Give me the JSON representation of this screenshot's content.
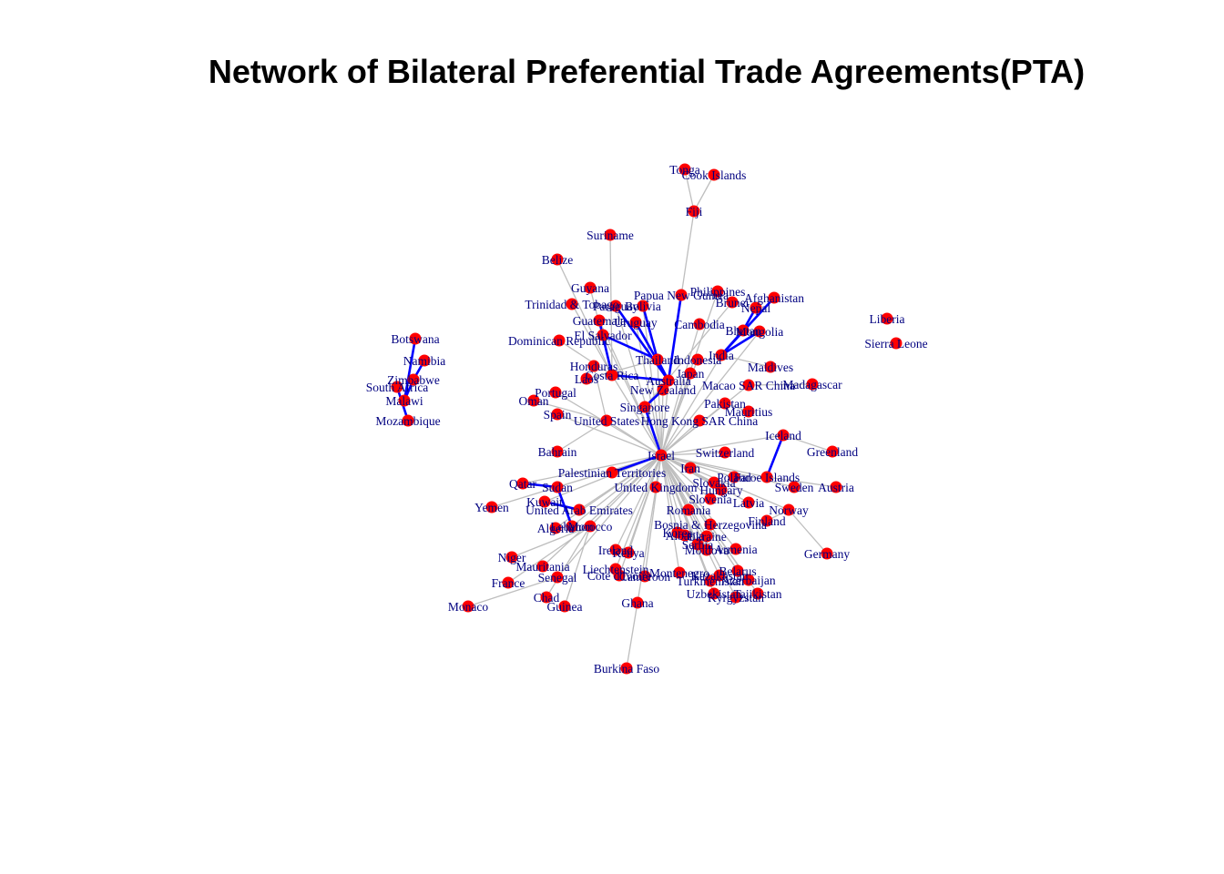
{
  "title": "Network of Bilateral Preferential Trade Agreements(PTA)",
  "colors": {
    "node": "#ff0000",
    "label": "#000080",
    "edge_grey": "#bebebe",
    "edge_blue": "#0000ff"
  },
  "nodes": [
    {
      "id": "Tonga",
      "label": "Tonga"
    },
    {
      "id": "Cook Islands",
      "label": "Cook Islands"
    },
    {
      "id": "Fiji",
      "label": "Fiji"
    },
    {
      "id": "Suriname",
      "label": "Suriname"
    },
    {
      "id": "Belize",
      "label": "Belize"
    },
    {
      "id": "Guyana",
      "label": "Guyana"
    },
    {
      "id": "Trinidad & Tobago",
      "label": "Trinidad & Tobago"
    },
    {
      "id": "Papua New Guinea",
      "label": "Papua New Guinea"
    },
    {
      "id": "Philippines",
      "label": "Philippines"
    },
    {
      "id": "Brunei",
      "label": "Brunei"
    },
    {
      "id": "Afghanistan",
      "label": "Afghanistan"
    },
    {
      "id": "Nepal",
      "label": "Nepal"
    },
    {
      "id": "Bhutan",
      "label": "Bhutan"
    },
    {
      "id": "Mongolia",
      "label": "Mongolia"
    },
    {
      "id": "Liberia",
      "label": "Liberia"
    },
    {
      "id": "Sierra Leone",
      "label": "Sierra Leone"
    },
    {
      "id": "Botswana",
      "label": "Botswana"
    },
    {
      "id": "Namibia",
      "label": "Namibia"
    },
    {
      "id": "Zimbabwe",
      "label": "Zimbabwe"
    },
    {
      "id": "South Africa",
      "label": "South Africa"
    },
    {
      "id": "Malawi",
      "label": "Malawi"
    },
    {
      "id": "Mozambique",
      "label": "Mozambique"
    },
    {
      "id": "Paraguay",
      "label": "Paraguay"
    },
    {
      "id": "Bolivia",
      "label": "Bolivia"
    },
    {
      "id": "Guatemala",
      "label": "Guatemala"
    },
    {
      "id": "Uruguay",
      "label": "Uruguay"
    },
    {
      "id": "El Salvador",
      "label": "El Salvador"
    },
    {
      "id": "Dominican Republic",
      "label": "Dominican Republic"
    },
    {
      "id": "Cambodia",
      "label": "Cambodia"
    },
    {
      "id": "Indonesia",
      "label": "Indonesia"
    },
    {
      "id": "Thailand",
      "label": "Thailand"
    },
    {
      "id": "India",
      "label": "India"
    },
    {
      "id": "Maldives",
      "label": "Maldives"
    },
    {
      "id": "Honduras",
      "label": "Honduras"
    },
    {
      "id": "Costa Rica",
      "label": "Costa Rica"
    },
    {
      "id": "Laos",
      "label": "Laos"
    },
    {
      "id": "Japan",
      "label": "Japan"
    },
    {
      "id": "Macao SAR China",
      "label": "Macao SAR China"
    },
    {
      "id": "Madagascar",
      "label": "Madagascar"
    },
    {
      "id": "Portugal",
      "label": "Portugal"
    },
    {
      "id": "New Zealand",
      "label": "New Zealand"
    },
    {
      "id": "Australia",
      "label": "Australia"
    },
    {
      "id": "Oman",
      "label": "Oman"
    },
    {
      "id": "Singapore",
      "label": "Singapore"
    },
    {
      "id": "Pakistan",
      "label": "Pakistan"
    },
    {
      "id": "Mauritius",
      "label": "Mauritius"
    },
    {
      "id": "Spain",
      "label": "Spain"
    },
    {
      "id": "United States",
      "label": "United States"
    },
    {
      "id": "Hong Kong SAR China",
      "label": "Hong Kong SAR China"
    },
    {
      "id": "Iceland",
      "label": "Iceland"
    },
    {
      "id": "Greenland",
      "label": "Greenland"
    },
    {
      "id": "Bahrain",
      "label": "Bahrain"
    },
    {
      "id": "Israel",
      "label": "Israel"
    },
    {
      "id": "Switzerland",
      "label": "Switzerland"
    },
    {
      "id": "Palestinian Territories",
      "label": "Palestinian Territories"
    },
    {
      "id": "Iran",
      "label": "Iran"
    },
    {
      "id": "Faroe Islands",
      "label": "Faroe Islands"
    },
    {
      "id": "Qatar",
      "label": "Qatar"
    },
    {
      "id": "Sudan",
      "label": "Sudan"
    },
    {
      "id": "United Kingdom",
      "label": "United Kingdom"
    },
    {
      "id": "Slovakia",
      "label": "Slovakia"
    },
    {
      "id": "Poland",
      "label": "Poland"
    },
    {
      "id": "Sweden",
      "label": "Sweden"
    },
    {
      "id": "Austria",
      "label": "Austria"
    },
    {
      "id": "Hungary",
      "label": "Hungary"
    },
    {
      "id": "Kuwait",
      "label": "Kuwait"
    },
    {
      "id": "Yemen",
      "label": "Yemen"
    },
    {
      "id": "United Arab Emirates",
      "label": "United Arab Emirates"
    },
    {
      "id": "Slovenia",
      "label": "Slovenia"
    },
    {
      "id": "Latvia",
      "label": "Latvia"
    },
    {
      "id": "Norway",
      "label": "Norway"
    },
    {
      "id": "Romania",
      "label": "Romania"
    },
    {
      "id": "Finland",
      "label": "Finland"
    },
    {
      "id": "Algeria",
      "label": "Algeria"
    },
    {
      "id": "Lebanon",
      "label": "Lebanon"
    },
    {
      "id": "Morocco",
      "label": "Morocco"
    },
    {
      "id": "Bosnia & Herzegovina",
      "label": "Bosnia & Herzegovina"
    },
    {
      "id": "Korea",
      "label": "Korea"
    },
    {
      "id": "Albania",
      "label": "Albania"
    },
    {
      "id": "Ukraine",
      "label": "Ukraine"
    },
    {
      "id": "Serbia",
      "label": "Serbia"
    },
    {
      "id": "Moldova",
      "label": "Moldova"
    },
    {
      "id": "Armenia",
      "label": "Armenia"
    },
    {
      "id": "Germany",
      "label": "Germany"
    },
    {
      "id": "Niger",
      "label": "Niger"
    },
    {
      "id": "Ireland",
      "label": "Ireland"
    },
    {
      "id": "Kenya",
      "label": "Kenya"
    },
    {
      "id": "Mauritania",
      "label": "Mauritania"
    },
    {
      "id": "Liechtenstein",
      "label": "Liechtenstein"
    },
    {
      "id": "Senegal",
      "label": "Senegal"
    },
    {
      "id": "Cote d'Ivoire",
      "label": "Cote d'Ivoire"
    },
    {
      "id": "Cameroon",
      "label": "Cameroon"
    },
    {
      "id": "Montenegro",
      "label": "Montenegro"
    },
    {
      "id": "Kazakhstan",
      "label": "Kazakhstan"
    },
    {
      "id": "Belarus",
      "label": "Belarus"
    },
    {
      "id": "Turkmenistan",
      "label": "Turkmenistan"
    },
    {
      "id": "Azerbaijan",
      "label": "Azerbaijan"
    },
    {
      "id": "Tajikistan",
      "label": "Tajikistan"
    },
    {
      "id": "Uzbekistan",
      "label": "Uzbekistan"
    },
    {
      "id": "Kyrgyzstan",
      "label": "Kyrgyzstan"
    },
    {
      "id": "France",
      "label": "France"
    },
    {
      "id": "Chad",
      "label": "Chad"
    },
    {
      "id": "Guinea",
      "label": "Guinea"
    },
    {
      "id": "Monaco",
      "label": "Monaco"
    },
    {
      "id": "Ghana",
      "label": "Ghana"
    },
    {
      "id": "Burkina Faso",
      "label": "Burkina Faso"
    }
  ],
  "edges_grey": [
    [
      "Tonga",
      "Fiji"
    ],
    [
      "Cook Islands",
      "Fiji"
    ],
    [
      "Fiji",
      "Australia"
    ],
    [
      "Suriname",
      "Costa Rica"
    ],
    [
      "Belize",
      "Costa Rica"
    ],
    [
      "Guyana",
      "Costa Rica"
    ],
    [
      "Trinidad & Tobago",
      "Costa Rica"
    ],
    [
      "Dominican Republic",
      "Costa Rica"
    ],
    [
      "Honduras",
      "United States"
    ],
    [
      "Laos",
      "Thailand"
    ],
    [
      "Portugal",
      "Israel"
    ],
    [
      "Oman",
      "United States"
    ],
    [
      "Spain",
      "Israel"
    ],
    [
      "Bahrain",
      "United States"
    ],
    [
      "Maldives",
      "India"
    ],
    [
      "Mauritius",
      "Pakistan"
    ],
    [
      "Madagascar",
      "Macao SAR China"
    ],
    [
      "Greenland",
      "Iceland"
    ],
    [
      "Austria",
      "Faroe Islands"
    ],
    [
      "Germany",
      "Norway"
    ],
    [
      "Finland",
      "Norway"
    ],
    [
      "Yemen",
      "Israel"
    ],
    [
      "Qatar",
      "Israel"
    ],
    [
      "Kuwait",
      "Israel"
    ],
    [
      "Niger",
      "Morocco"
    ],
    [
      "France",
      "Morocco"
    ],
    [
      "Monaco",
      "Senegal"
    ],
    [
      "Chad",
      "Morocco"
    ],
    [
      "Guinea",
      "Morocco"
    ],
    [
      "Burkina Faso",
      "Ghana"
    ],
    [
      "Ghana",
      "Israel"
    ],
    [
      "Ireland",
      "Israel"
    ],
    [
      "Kenya",
      "Israel"
    ],
    [
      "Mauritania",
      "Israel"
    ],
    [
      "Liechtenstein",
      "Israel"
    ],
    [
      "Senegal",
      "Israel"
    ],
    [
      "Cote d'Ivoire",
      "Israel"
    ],
    [
      "Cameroon",
      "Israel"
    ],
    [
      "Montenegro",
      "Israel"
    ],
    [
      "Kazakhstan",
      "Israel"
    ],
    [
      "Belarus",
      "Israel"
    ],
    [
      "Turkmenistan",
      "Israel"
    ],
    [
      "Azerbaijan",
      "Israel"
    ],
    [
      "Tajikistan",
      "Israel"
    ],
    [
      "Uzbekistan",
      "Israel"
    ],
    [
      "Kyrgyzstan",
      "Israel"
    ],
    [
      "Moldova",
      "Israel"
    ],
    [
      "Armenia",
      "Israel"
    ],
    [
      "Serbia",
      "Israel"
    ],
    [
      "Ukraine",
      "Israel"
    ],
    [
      "Albania",
      "Israel"
    ],
    [
      "Korea",
      "Israel"
    ],
    [
      "Bosnia & Herzegovina",
      "Israel"
    ],
    [
      "Romania",
      "Israel"
    ],
    [
      "Latvia",
      "Israel"
    ],
    [
      "Slovenia",
      "Israel"
    ],
    [
      "Hungary",
      "Israel"
    ],
    [
      "Slovakia",
      "Israel"
    ],
    [
      "Poland",
      "Israel"
    ],
    [
      "Sweden",
      "Israel"
    ],
    [
      "Iran",
      "Israel"
    ],
    [
      "Switzerland",
      "Israel"
    ],
    [
      "Algeria",
      "Israel"
    ],
    [
      "Lebanon",
      "Israel"
    ],
    [
      "Morocco",
      "Israel"
    ],
    [
      "Sudan",
      "Israel"
    ],
    [
      "United Arab Emirates",
      "Israel"
    ],
    [
      "United Kingdom",
      "Israel"
    ],
    [
      "United States",
      "Israel"
    ],
    [
      "Singapore",
      "Israel"
    ],
    [
      "Hong Kong SAR China",
      "Israel"
    ],
    [
      "New Zealand",
      "Israel"
    ],
    [
      "Japan",
      "Israel"
    ],
    [
      "India",
      "Israel"
    ],
    [
      "Thailand",
      "Israel"
    ],
    [
      "Indonesia",
      "Israel"
    ],
    [
      "Cambodia",
      "Israel"
    ],
    [
      "Philippines",
      "Israel"
    ],
    [
      "Papua New Guinea",
      "Australia"
    ],
    [
      "Brunei",
      "Singapore"
    ],
    [
      "Costa Rica",
      "Israel"
    ],
    [
      "Guatemala",
      "Israel"
    ],
    [
      "El Salvador",
      "Israel"
    ],
    [
      "Paraguay",
      "Israel"
    ],
    [
      "Bolivia",
      "Israel"
    ],
    [
      "Uruguay",
      "Israel"
    ],
    [
      "Mongolia",
      "Israel"
    ],
    [
      "Afghanistan",
      "India"
    ],
    [
      "Iceland",
      "Israel"
    ],
    [
      "Faroe Islands",
      "Israel"
    ],
    [
      "Norway",
      "Israel"
    ],
    [
      "Palestinian Territories",
      "Israel"
    ],
    [
      "Pakistan",
      "Israel"
    ],
    [
      "Macao SAR China",
      "Israel"
    ],
    [
      "Australia",
      "Israel"
    ]
  ],
  "edges_blue": [
    [
      "Botswana",
      "Malawi"
    ],
    [
      "Namibia",
      "Zimbabwe"
    ],
    [
      "South Africa",
      "Mozambique"
    ],
    [
      "Zimbabwe",
      "Malawi"
    ],
    [
      "Nepal",
      "Bhutan"
    ],
    [
      "Afghanistan",
      "India"
    ],
    [
      "Bhutan",
      "India"
    ],
    [
      "Mongolia",
      "India"
    ],
    [
      "Papua New Guinea",
      "Australia"
    ],
    [
      "Paraguay",
      "Australia"
    ],
    [
      "Bolivia",
      "Thailand"
    ],
    [
      "Uruguay",
      "Australia"
    ],
    [
      "Guatemala",
      "Costa Rica"
    ],
    [
      "El Salvador",
      "Thailand"
    ],
    [
      "New Zealand",
      "Singapore"
    ],
    [
      "Singapore",
      "Israel"
    ],
    [
      "Iceland",
      "Faroe Islands"
    ],
    [
      "Palestinian Territories",
      "Israel"
    ],
    [
      "Qatar",
      "Sudan"
    ],
    [
      "Kuwait",
      "United Arab Emirates"
    ],
    [
      "Sudan",
      "Lebanon"
    ],
    [
      "Thailand",
      "Australia"
    ],
    [
      "Costa Rica",
      "Australia"
    ]
  ]
}
